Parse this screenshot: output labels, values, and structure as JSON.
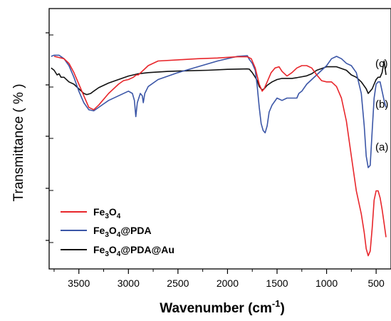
{
  "chart_data": {
    "type": "line",
    "title": "",
    "xlabel": "Wavenumber (cm",
    "xlabel_sup": "-1",
    "xlabel_close": ")",
    "ylabel": "Transmittance  ( % )",
    "xlim": [
      3800,
      350
    ],
    "x_reversed": true,
    "ylim": [
      0,
      100
    ],
    "y_ticks_labeled": false,
    "x_ticks": [
      3500,
      3000,
      2500,
      2000,
      1500,
      1000,
      500
    ],
    "x_tick_labels": [
      "3500",
      "3000",
      "2500",
      "2000",
      "1500",
      "1000",
      "500"
    ],
    "grid": false,
    "legend_position": "bottom-left",
    "series": [
      {
        "key": "fe3o4",
        "name": "Fe3O4",
        "legend_base": [
          "Fe",
          "3",
          "O",
          "4"
        ],
        "legend_suffix": "",
        "end_label": "(a)",
        "color": "#e8262b",
        "x": [
          3750,
          3700,
          3650,
          3600,
          3550,
          3500,
          3450,
          3400,
          3350,
          3300,
          3200,
          3100,
          3050,
          3000,
          2950,
          2920,
          2900,
          2850,
          2800,
          2700,
          2500,
          2300,
          2100,
          1900,
          1800,
          1760,
          1720,
          1680,
          1650,
          1630,
          1600,
          1560,
          1520,
          1480,
          1450,
          1400,
          1350,
          1300,
          1250,
          1200,
          1150,
          1100,
          1050,
          1000,
          950,
          900,
          850,
          800,
          750,
          700,
          650,
          620,
          600,
          580,
          560,
          540,
          520,
          500,
          480,
          460,
          440,
          420,
          400
        ],
        "y": [
          88,
          87.5,
          87,
          85,
          81,
          76,
          71,
          66,
          65,
          67,
          72,
          76,
          77.5,
          78,
          79,
          80,
          80,
          82,
          84,
          86,
          86.5,
          87,
          87.3,
          87.8,
          87.8,
          87,
          83,
          76,
          73,
          74,
          77,
          81,
          83,
          83.5,
          81.5,
          79.5,
          81,
          83,
          84,
          84,
          83,
          80,
          77.5,
          77,
          77,
          75,
          70,
          60,
          45,
          30,
          20,
          12,
          5,
          2,
          4,
          14,
          26,
          30,
          30,
          27,
          22,
          16,
          10
        ]
      },
      {
        "key": "pda",
        "name": "Fe3O4@PDA",
        "legend_base": [
          "Fe",
          "3",
          "O",
          "4"
        ],
        "legend_suffix": "@PDA",
        "end_label": "(b)",
        "color": "#3b56a7",
        "x": [
          3780,
          3750,
          3700,
          3650,
          3600,
          3550,
          3500,
          3450,
          3400,
          3350,
          3300,
          3250,
          3200,
          3100,
          3000,
          2960,
          2940,
          2925,
          2910,
          2880,
          2860,
          2850,
          2835,
          2800,
          2700,
          2500,
          2300,
          2100,
          1900,
          1800,
          1780,
          1750,
          1720,
          1700,
          1680,
          1660,
          1640,
          1620,
          1600,
          1580,
          1550,
          1500,
          1450,
          1400,
          1350,
          1300,
          1280,
          1250,
          1200,
          1150,
          1100,
          1050,
          1000,
          950,
          900,
          850,
          800,
          750,
          700,
          650,
          620,
          600,
          580,
          560,
          540,
          520,
          500,
          480,
          460,
          440,
          420,
          400
        ],
        "y": [
          88,
          88.5,
          88.5,
          87,
          84,
          79,
          73,
          68,
          65,
          64.5,
          66,
          67.5,
          69,
          71,
          73,
          72,
          69,
          62,
          68,
          72,
          71,
          68,
          72,
          75,
          78,
          81,
          83.5,
          86,
          88,
          88.3,
          86.7,
          85,
          82,
          75,
          66,
          59,
          56,
          55,
          58,
          64,
          67,
          70,
          69,
          70,
          70,
          70,
          72,
          73,
          76,
          78,
          80,
          82,
          84,
          87,
          88,
          87,
          85,
          84,
          81,
          72,
          58,
          45,
          40,
          41,
          56,
          70,
          76,
          77,
          77,
          73,
          69,
          66
        ]
      },
      {
        "key": "au",
        "name": "Fe3O4@PDA@Au",
        "legend_base": [
          "Fe",
          "3",
          "O",
          "4"
        ],
        "legend_suffix": "@PDA@Au",
        "end_label": "(c)",
        "color": "#111111",
        "x": [
          3780,
          3750,
          3720,
          3700,
          3680,
          3650,
          3600,
          3550,
          3500,
          3450,
          3420,
          3380,
          3350,
          3300,
          3200,
          3100,
          3000,
          2900,
          2800,
          2600,
          2400,
          2200,
          2000,
          1800,
          1780,
          1750,
          1720,
          1700,
          1680,
          1650,
          1630,
          1600,
          1550,
          1500,
          1450,
          1400,
          1350,
          1300,
          1250,
          1200,
          1150,
          1100,
          1000,
          900,
          800,
          750,
          700,
          650,
          600,
          580,
          560,
          540,
          520,
          500,
          480,
          460,
          440,
          420,
          400
        ],
        "y": [
          83,
          82,
          80,
          80.5,
          79,
          79,
          77,
          76,
          74,
          72,
          71.5,
          72,
          73,
          74.5,
          76.5,
          78,
          79.5,
          80.5,
          81,
          81.5,
          81.8,
          82,
          82.4,
          82.6,
          82.5,
          81,
          79,
          77.5,
          75,
          73.5,
          74,
          75.5,
          77,
          78,
          78.5,
          78.5,
          78.5,
          78.8,
          79.2,
          79.6,
          80.5,
          82,
          83.5,
          83.5,
          82,
          80,
          79,
          77,
          74,
          72,
          73,
          74,
          76,
          78,
          79,
          79,
          81,
          86,
          80
        ]
      }
    ]
  }
}
